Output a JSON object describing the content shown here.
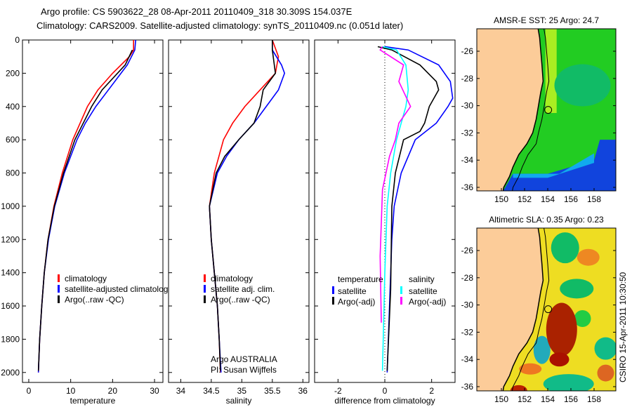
{
  "title_line1": "Argo profile: CS 5903622_28 08-Apr-2011 20110409_318 30.309S 154.037E",
  "title_line2": "Climatology: CARS2009. Satellite-adjusted climatology: synTS_20110409.nc (0.051d later)",
  "footer": "CSIRO 15-Apr-2011 10:30:50",
  "chart_data": [
    {
      "type": "line",
      "xlabel": "temperature",
      "ylabel": "",
      "xlim": [
        -1.5,
        32
      ],
      "ylim": [
        2060,
        0
      ],
      "xticks": [
        "0",
        "10",
        "20",
        "30"
      ],
      "xtickvals": [
        0,
        10,
        20,
        30
      ],
      "yticks": [
        "0",
        "200",
        "400",
        "600",
        "800",
        "1000",
        "1200",
        "1400",
        "1600",
        "1800",
        "2000"
      ],
      "legend": [
        "climatology",
        "satellite-adjusted climatology",
        "Argo(..raw -QC)"
      ],
      "series": [
        {
          "name": "climatology",
          "color": "#ff0000",
          "depth": [
            0,
            60,
            100,
            200,
            300,
            400,
            600,
            800,
            1000,
            1200,
            1400,
            1600,
            1800,
            2000
          ],
          "values": [
            25,
            25,
            24,
            20,
            16.5,
            14,
            10.5,
            8,
            6,
            4.6,
            3.7,
            3.1,
            2.6,
            2.3
          ]
        },
        {
          "name": "satellite-adjusted climatology",
          "color": "#0000ff",
          "depth": [
            0,
            60,
            150,
            200,
            300,
            400,
            500,
            600,
            800,
            1000,
            1200,
            1400,
            1600,
            1800,
            2000
          ],
          "values": [
            25.5,
            25.3,
            23.5,
            22,
            19,
            16,
            13.5,
            11.5,
            8.5,
            6.2,
            4.7,
            3.7,
            3.1,
            2.6,
            2.3
          ]
        },
        {
          "name": "Argo",
          "color": "#000000",
          "depth": [
            60,
            150,
            300,
            400,
            500,
            600,
            800,
            1000,
            1200,
            1400,
            1600,
            1800,
            1990
          ],
          "values": [
            24.7,
            23,
            17.5,
            15,
            13,
            11,
            8.3,
            6.1,
            4.6,
            3.7,
            3.1,
            2.6,
            2.3
          ]
        }
      ]
    },
    {
      "type": "line",
      "xlabel": "salinity",
      "xlim": [
        33.8,
        36.1
      ],
      "ylim": [
        2060,
        0
      ],
      "xticks": [
        "34",
        "34.5",
        "35",
        "35.5",
        "36"
      ],
      "xtickvals": [
        34,
        34.5,
        35,
        35.5,
        36
      ],
      "legend": [
        "climatology",
        "satellite adj. clim.",
        "Argo(..raw -QC)"
      ],
      "annotations": [
        "Argo AUSTRALIA",
        "PI: Susan Wijffels"
      ],
      "series": [
        {
          "name": "climatology",
          "color": "#ff0000",
          "depth": [
            0,
            100,
            200,
            300,
            400,
            500,
            600,
            800,
            1000,
            1200,
            1400,
            1600,
            1800,
            2000
          ],
          "values": [
            35.5,
            35.6,
            35.55,
            35.3,
            35.05,
            34.85,
            34.7,
            34.55,
            34.47,
            34.5,
            34.55,
            34.6,
            34.63,
            34.65
          ]
        },
        {
          "name": "satellite adj. clim.",
          "color": "#0000ff",
          "depth": [
            0,
            60,
            150,
            200,
            300,
            400,
            500,
            600,
            700,
            800,
            1000,
            1200,
            1400,
            1600,
            1800,
            2000
          ],
          "values": [
            35.5,
            35.5,
            35.65,
            35.7,
            35.6,
            35.4,
            35.2,
            34.95,
            34.75,
            34.6,
            34.47,
            34.5,
            34.55,
            34.6,
            34.63,
            34.66
          ]
        },
        {
          "name": "Argo",
          "color": "#000000",
          "depth": [
            0,
            60,
            200,
            300,
            400,
            500,
            600,
            700,
            800,
            1000,
            1200,
            1400,
            1600,
            1800,
            1990
          ],
          "values": [
            35.5,
            35.5,
            35.55,
            35.35,
            35.3,
            35.2,
            34.95,
            34.72,
            34.58,
            34.47,
            34.5,
            34.55,
            34.6,
            34.63,
            34.65
          ]
        }
      ]
    },
    {
      "type": "line",
      "xlabel": "difference from climatology",
      "xlim": [
        -3,
        3
      ],
      "ylim": [
        2060,
        0
      ],
      "xticks": [
        "-2",
        "0",
        "2"
      ],
      "xtickvals": [
        -2,
        0,
        2
      ],
      "legend_groups": [
        {
          "title": "temperature",
          "items": [
            "satellite",
            "Argo(-adj)"
          ]
        },
        {
          "title": "salinity",
          "items": [
            "satellite",
            "Argo(-adj)"
          ]
        }
      ],
      "series": [
        {
          "name": "temperature satellite",
          "color": "#0000ff",
          "depth": [
            40,
            60,
            150,
            250,
            350,
            400,
            500,
            600,
            800,
            1000,
            1200,
            1600,
            2000
          ],
          "values": [
            0,
            1,
            2.3,
            2.8,
            2.9,
            2.7,
            2.2,
            1.3,
            0.7,
            0.4,
            0.3,
            0.2,
            0.1
          ]
        },
        {
          "name": "temperature Argo(-adj)",
          "color": "#000000",
          "depth": [
            40,
            60,
            150,
            250,
            300,
            400,
            500,
            550,
            600,
            800,
            1000,
            1500,
            1990
          ],
          "values": [
            -0.3,
            0.3,
            1.5,
            2.2,
            2.3,
            1.9,
            1.7,
            1.5,
            0.8,
            0.45,
            0.3,
            0.25,
            0.1
          ]
        },
        {
          "name": "salinity satellite",
          "color": "#00ffff",
          "depth": [
            40,
            60,
            150,
            300,
            400,
            600,
            800,
            1000,
            1400,
            1990
          ],
          "values": [
            -0.1,
            0.5,
            0.9,
            1,
            0.9,
            0.5,
            0.25,
            0.1,
            0,
            -0.1
          ]
        },
        {
          "name": "salinity Argo(-adj)",
          "color": "#ff00ff",
          "depth": [
            40,
            60,
            150,
            250,
            400,
            500,
            600,
            700,
            900,
            1300,
            1700
          ],
          "values": [
            -0.1,
            -0.2,
            0.8,
            0.6,
            1.1,
            0.6,
            0.45,
            0.2,
            -0.1,
            -0.2,
            -0.15
          ]
        }
      ]
    }
  ],
  "maps": [
    {
      "title": "AMSR-E SST: 25 Argo: 24.7",
      "xticks": [
        "150",
        "152",
        "154",
        "156",
        "158"
      ],
      "yticks": [
        "-26",
        "-28",
        "-30",
        "-32",
        "-34",
        "-36"
      ],
      "argo_lon": 154.037,
      "argo_lat": -30.309
    },
    {
      "title": "Altimetric SLA: 0.35 Argo: 0.23",
      "xticks": [
        "150",
        "152",
        "154",
        "156",
        "158"
      ],
      "yticks": [
        "-26",
        "-28",
        "-30",
        "-32",
        "-34",
        "-36"
      ],
      "argo_lon": 154.037,
      "argo_lat": -30.309
    }
  ]
}
